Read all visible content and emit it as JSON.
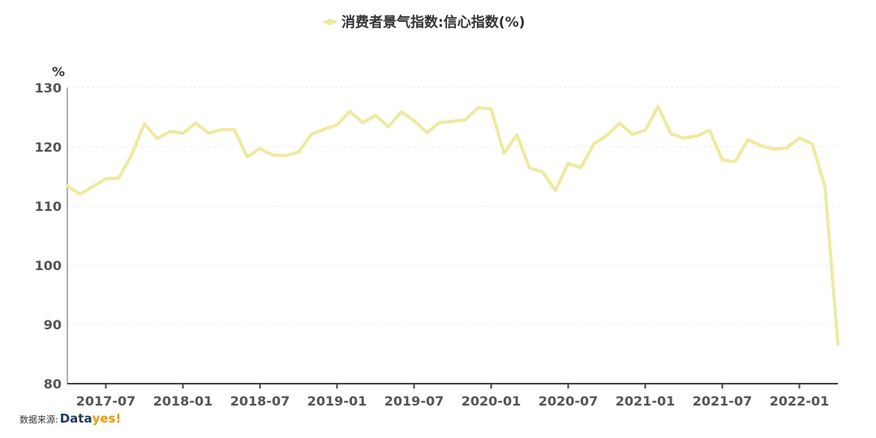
{
  "chart_data": {
    "type": "line",
    "title": "消费者景气指数:信心指数(%)",
    "unit": "%",
    "ylim": [
      80,
      130
    ],
    "yticks": [
      80,
      90,
      100,
      110,
      120,
      130
    ],
    "xlim": [
      "2017-04",
      "2022-04"
    ],
    "xticks": [
      "2017-07",
      "2018-01",
      "2018-07",
      "2019-01",
      "2019-07",
      "2020-01",
      "2020-07",
      "2021-01",
      "2021-07",
      "2022-01"
    ],
    "grid": true,
    "legend": "top-center",
    "series": [
      {
        "name": "消费者景气指数:信心指数(%)",
        "color": "#eeeaa0",
        "x": [
          "2017-04",
          "2017-05",
          "2017-06",
          "2017-07",
          "2017-08",
          "2017-09",
          "2017-10",
          "2017-11",
          "2017-12",
          "2018-01",
          "2018-02",
          "2018-03",
          "2018-04",
          "2018-05",
          "2018-06",
          "2018-07",
          "2018-08",
          "2018-09",
          "2018-10",
          "2018-11",
          "2018-12",
          "2019-01",
          "2019-02",
          "2019-03",
          "2019-04",
          "2019-05",
          "2019-06",
          "2019-07",
          "2019-08",
          "2019-09",
          "2019-10",
          "2019-11",
          "2019-12",
          "2020-01",
          "2020-02",
          "2020-03",
          "2020-04",
          "2020-05",
          "2020-06",
          "2020-07",
          "2020-08",
          "2020-09",
          "2020-10",
          "2020-11",
          "2020-12",
          "2021-01",
          "2021-02",
          "2021-03",
          "2021-04",
          "2021-05",
          "2021-06",
          "2021-07",
          "2021-08",
          "2021-09",
          "2021-10",
          "2021-11",
          "2021-12",
          "2022-01",
          "2022-02",
          "2022-03",
          "2022-04"
        ],
        "values": [
          113.4,
          112.0,
          113.3,
          114.6,
          114.7,
          118.6,
          123.9,
          121.4,
          122.6,
          122.3,
          124.0,
          122.3,
          122.9,
          122.9,
          118.3,
          119.7,
          118.6,
          118.5,
          119.1,
          122.1,
          123.0,
          123.7,
          126.0,
          124.1,
          125.3,
          123.4,
          125.9,
          124.4,
          122.4,
          124.1,
          124.3,
          124.6,
          126.6,
          126.4,
          118.9,
          122.0,
          116.4,
          115.8,
          112.6,
          117.2,
          116.5,
          120.5,
          121.9,
          124.0,
          122.1,
          122.8,
          126.8,
          122.2,
          121.5,
          121.8,
          122.8,
          117.8,
          117.5,
          121.2,
          120.2,
          119.6,
          119.8,
          121.5,
          120.5,
          113.2,
          86.7
        ]
      }
    ]
  },
  "source": {
    "label": "数据来源:",
    "brand_part1": "Data",
    "brand_part2": "yes!"
  }
}
